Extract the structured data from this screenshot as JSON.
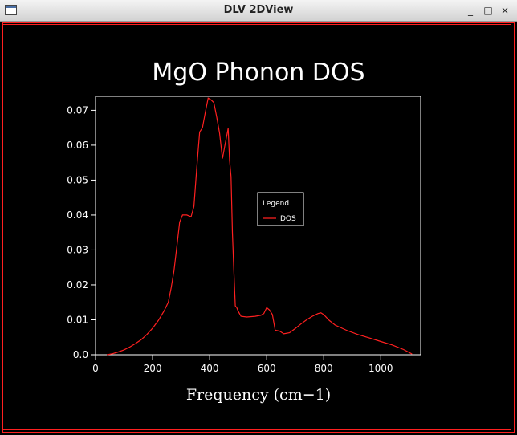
{
  "window": {
    "title": "DLV 2DView",
    "minimize_glyph": "_",
    "maximize_glyph": "□",
    "close_glyph": "×",
    "icon": "app-window-icon"
  },
  "colors": {
    "background": "#000000",
    "frame": "#ff2020",
    "axes": "#ffffff",
    "series": "#ff2020"
  },
  "chart_data": {
    "type": "line",
    "title": "MgO Phonon DOS",
    "xlabel": "Frequency (cm−1)",
    "ylabel": "",
    "xlim": [
      0,
      1140
    ],
    "ylim": [
      0,
      0.074
    ],
    "xticks": [
      0,
      200,
      400,
      600,
      800,
      1000
    ],
    "xtick_labels": [
      "0",
      "200",
      "400",
      "600",
      "800",
      "1000"
    ],
    "yticks": [
      0,
      0.01,
      0.02,
      0.03,
      0.04,
      0.05,
      0.06,
      0.07
    ],
    "ytick_labels": [
      "0.0",
      "0.01",
      "0.02",
      "0.03",
      "0.04",
      "0.05",
      "0.06",
      "0.07"
    ],
    "grid": false,
    "legend": {
      "title": "Legend",
      "placement": "center-right"
    },
    "series": [
      {
        "name": "DOS",
        "color": "#ff2020",
        "x": [
          40,
          60,
          80,
          100,
          120,
          140,
          160,
          180,
          200,
          220,
          240,
          255,
          265,
          275,
          285,
          295,
          305,
          320,
          335,
          345,
          355,
          365,
          375,
          385,
          395,
          405,
          415,
          425,
          435,
          445,
          455,
          465,
          470,
          475,
          480,
          485,
          490,
          495,
          500,
          510,
          530,
          560,
          580,
          590,
          600,
          610,
          620,
          630,
          645,
          660,
          680,
          700,
          720,
          740,
          760,
          780,
          790,
          800,
          820,
          840,
          880,
          920,
          960,
          1000,
          1040,
          1080,
          1110
        ],
        "y": [
          0,
          0.0003,
          0.0008,
          0.0014,
          0.0022,
          0.0032,
          0.0043,
          0.0058,
          0.0076,
          0.0098,
          0.0125,
          0.015,
          0.019,
          0.024,
          0.031,
          0.038,
          0.04,
          0.04,
          0.0395,
          0.0425,
          0.0535,
          0.0638,
          0.065,
          0.0695,
          0.0735,
          0.073,
          0.0722,
          0.068,
          0.0635,
          0.0562,
          0.0605,
          0.0648,
          0.0555,
          0.051,
          0.035,
          0.024,
          0.014,
          0.0135,
          0.0125,
          0.011,
          0.0108,
          0.011,
          0.0113,
          0.0118,
          0.0135,
          0.0128,
          0.0115,
          0.007,
          0.0068,
          0.006,
          0.0063,
          0.0075,
          0.0088,
          0.01,
          0.011,
          0.0118,
          0.012,
          0.0115,
          0.0098,
          0.0085,
          0.007,
          0.0058,
          0.0048,
          0.0038,
          0.0028,
          0.0015,
          0.0002
        ]
      }
    ]
  }
}
